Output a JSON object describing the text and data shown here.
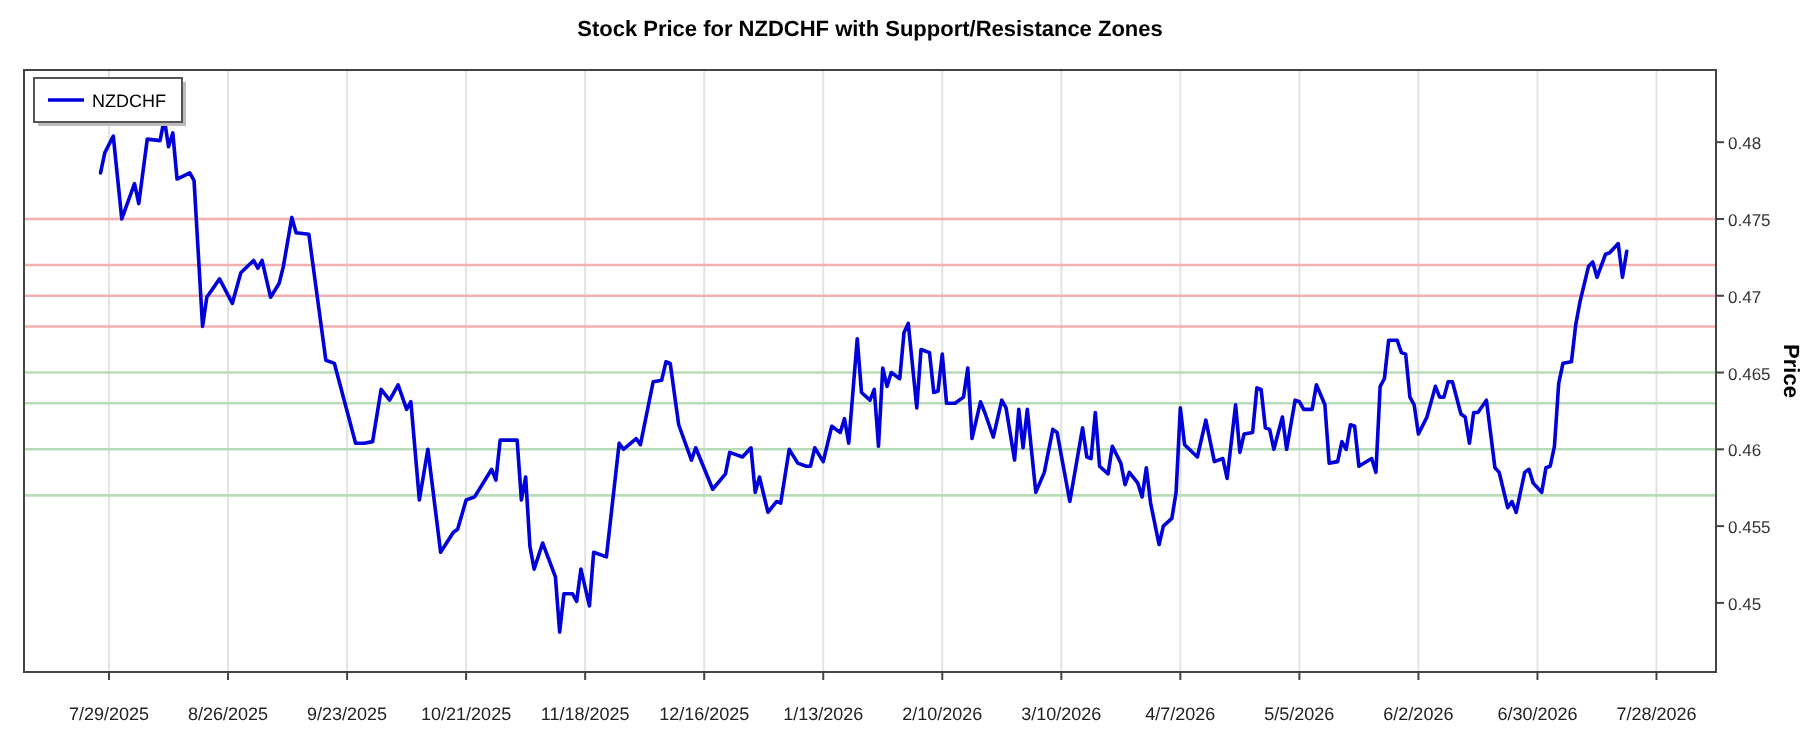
{
  "chart_data": {
    "type": "line",
    "title": "Stock Price for NZDCHF with Support/Resistance Zones",
    "ylabel": "Price",
    "x": [
      "2025-07-27",
      "2025-07-28",
      "2025-07-30",
      "2025-08-01",
      "2025-08-04",
      "2025-08-05",
      "2025-08-07",
      "2025-08-10",
      "2025-08-11",
      "2025-08-12",
      "2025-08-13",
      "2025-08-14",
      "2025-08-17",
      "2025-08-18",
      "2025-08-20",
      "2025-08-21",
      "2025-08-24",
      "2025-08-27",
      "2025-08-29",
      "2025-09-01",
      "2025-09-02",
      "2025-09-03",
      "2025-09-05",
      "2025-09-07",
      "2025-09-08",
      "2025-09-10",
      "2025-09-11",
      "2025-09-14",
      "2025-09-16",
      "2025-09-18",
      "2025-09-20",
      "2025-09-25",
      "2025-09-27",
      "2025-09-29",
      "2025-10-01",
      "2025-10-03",
      "2025-10-05",
      "2025-10-07",
      "2025-10-08",
      "2025-10-10",
      "2025-10-12",
      "2025-10-15",
      "2025-10-18",
      "2025-10-19",
      "2025-10-21",
      "2025-10-23",
      "2025-10-27",
      "2025-10-28",
      "2025-10-29",
      "2025-11-02",
      "2025-11-03",
      "2025-11-04",
      "2025-11-05",
      "2025-11-06",
      "2025-11-08",
      "2025-11-11",
      "2025-11-12",
      "2025-11-13",
      "2025-11-15",
      "2025-11-16",
      "2025-11-17",
      "2025-11-19",
      "2025-11-20",
      "2025-11-23",
      "2025-11-26",
      "2025-11-27",
      "2025-11-30",
      "2025-12-01",
      "2025-12-04",
      "2025-12-06",
      "2025-12-07",
      "2025-12-08",
      "2025-12-10",
      "2025-12-13",
      "2025-12-14",
      "2025-12-18",
      "2025-12-21",
      "2025-12-22",
      "2025-12-25",
      "2025-12-27",
      "2025-12-28",
      "2025-12-29",
      "2025-12-31",
      "2026-01-02",
      "2026-01-03",
      "2026-01-05",
      "2026-01-07",
      "2026-01-09",
      "2026-01-10",
      "2026-01-11",
      "2026-01-13",
      "2026-01-15",
      "2026-01-17",
      "2026-01-18",
      "2026-01-19",
      "2026-01-21",
      "2026-01-22",
      "2026-01-24",
      "2026-01-25",
      "2026-01-26",
      "2026-01-27",
      "2026-01-28",
      "2026-01-29",
      "2026-01-31",
      "2026-02-01",
      "2026-02-02",
      "2026-02-04",
      "2026-02-05",
      "2026-02-07",
      "2026-02-08",
      "2026-02-09",
      "2026-02-10",
      "2026-02-11",
      "2026-02-13",
      "2026-02-15",
      "2026-02-16",
      "2026-02-17",
      "2026-02-19",
      "2026-02-20",
      "2026-02-22",
      "2026-02-24",
      "2026-02-25",
      "2026-02-27",
      "2026-02-28",
      "2026-03-01",
      "2026-03-02",
      "2026-03-04",
      "2026-03-06",
      "2026-03-08",
      "2026-03-09",
      "2026-03-12",
      "2026-03-13",
      "2026-03-15",
      "2026-03-16",
      "2026-03-17",
      "2026-03-18",
      "2026-03-19",
      "2026-03-21",
      "2026-03-22",
      "2026-03-24",
      "2026-03-25",
      "2026-03-26",
      "2026-03-28",
      "2026-03-29",
      "2026-03-30",
      "2026-03-31",
      "2026-04-02",
      "2026-04-03",
      "2026-04-05",
      "2026-04-06",
      "2026-04-07",
      "2026-04-08",
      "2026-04-11",
      "2026-04-13",
      "2026-04-15",
      "2026-04-17",
      "2026-04-18",
      "2026-04-20",
      "2026-04-21",
      "2026-04-22",
      "2026-04-24",
      "2026-04-25",
      "2026-04-26",
      "2026-04-27",
      "2026-04-28",
      "2026-04-29",
      "2026-05-01",
      "2026-05-02",
      "2026-05-04",
      "2026-05-05",
      "2026-05-06",
      "2026-05-08",
      "2026-05-09",
      "2026-05-11",
      "2026-05-12",
      "2026-05-14",
      "2026-05-15",
      "2026-05-16",
      "2026-05-17",
      "2026-05-18",
      "2026-05-19",
      "2026-05-22",
      "2026-05-23",
      "2026-05-24",
      "2026-05-25",
      "2026-05-26",
      "2026-05-28",
      "2026-05-29",
      "2026-05-30",
      "2026-05-31",
      "2026-06-01",
      "2026-06-02",
      "2026-06-04",
      "2026-06-06",
      "2026-06-07",
      "2026-06-08",
      "2026-06-09",
      "2026-06-10",
      "2026-06-12",
      "2026-06-13",
      "2026-06-14",
      "2026-06-15",
      "2026-06-16",
      "2026-06-18",
      "2026-06-20",
      "2026-06-21",
      "2026-06-23",
      "2026-06-24",
      "2026-06-25",
      "2026-06-27",
      "2026-06-28",
      "2026-06-29",
      "2026-07-01",
      "2026-07-02",
      "2026-07-03",
      "2026-07-04",
      "2026-07-05",
      "2026-07-06",
      "2026-07-08",
      "2026-07-09",
      "2026-07-10",
      "2026-07-12",
      "2026-07-13",
      "2026-07-14",
      "2026-07-16",
      "2026-07-17",
      "2026-07-19",
      "2026-07-20",
      "2026-07-21"
    ],
    "series": [
      {
        "name": "NZDCHF",
        "color": "#0000dd",
        "values": [
          0.478,
          0.4793,
          0.4804,
          0.475,
          0.4773,
          0.476,
          0.4802,
          0.4801,
          0.4815,
          0.4797,
          0.4806,
          0.4776,
          0.478,
          0.4775,
          0.468,
          0.4699,
          0.4711,
          0.4695,
          0.4715,
          0.4723,
          0.4718,
          0.4723,
          0.4699,
          0.4708,
          0.4719,
          0.4751,
          0.4741,
          0.474,
          0.4699,
          0.4658,
          0.4656,
          0.4604,
          0.4604,
          0.4605,
          0.4639,
          0.4632,
          0.4642,
          0.4626,
          0.4631,
          0.4567,
          0.46,
          0.4533,
          0.4546,
          0.4548,
          0.4567,
          0.4569,
          0.4587,
          0.458,
          0.4606,
          0.4606,
          0.4567,
          0.4582,
          0.4537,
          0.4522,
          0.4539,
          0.4517,
          0.4481,
          0.4506,
          0.4506,
          0.4501,
          0.4522,
          0.4498,
          0.4533,
          0.453,
          0.4604,
          0.46,
          0.4607,
          0.4603,
          0.4644,
          0.4645,
          0.4657,
          0.4656,
          0.4616,
          0.4593,
          0.4601,
          0.4574,
          0.4584,
          0.4598,
          0.4595,
          0.4601,
          0.4572,
          0.4582,
          0.4559,
          0.4566,
          0.4565,
          0.46,
          0.4591,
          0.4589,
          0.4589,
          0.4601,
          0.4592,
          0.4615,
          0.4611,
          0.462,
          0.4604,
          0.4672,
          0.4637,
          0.4632,
          0.4639,
          0.4602,
          0.4653,
          0.4641,
          0.465,
          0.4646,
          0.4676,
          0.4682,
          0.4627,
          0.4665,
          0.4663,
          0.4637,
          0.4638,
          0.4662,
          0.463,
          0.463,
          0.4634,
          0.4653,
          0.4607,
          0.4631,
          0.4624,
          0.4608,
          0.4632,
          0.4627,
          0.4593,
          0.4626,
          0.4601,
          0.4626,
          0.4572,
          0.4585,
          0.4613,
          0.4611,
          0.4566,
          0.4582,
          0.4614,
          0.4595,
          0.4594,
          0.4624,
          0.4589,
          0.4584,
          0.4602,
          0.4591,
          0.4577,
          0.4585,
          0.4578,
          0.4569,
          0.4588,
          0.4565,
          0.4538,
          0.455,
          0.4555,
          0.4572,
          0.4627,
          0.4603,
          0.4595,
          0.4619,
          0.4592,
          0.4594,
          0.4581,
          0.4629,
          0.4598,
          0.461,
          0.4611,
          0.464,
          0.4639,
          0.4614,
          0.4613,
          0.46,
          0.4621,
          0.46,
          0.4632,
          0.4631,
          0.4626,
          0.4626,
          0.4642,
          0.4629,
          0.4591,
          0.4592,
          0.4605,
          0.46,
          0.4616,
          0.4615,
          0.4589,
          0.4594,
          0.4585,
          0.4641,
          0.4646,
          0.4671,
          0.4671,
          0.4663,
          0.4662,
          0.4634,
          0.4629,
          0.461,
          0.4621,
          0.4641,
          0.4634,
          0.4634,
          0.4644,
          0.4644,
          0.4623,
          0.4621,
          0.4604,
          0.4624,
          0.4624,
          0.4632,
          0.4588,
          0.4585,
          0.4562,
          0.4566,
          0.4559,
          0.4585,
          0.4587,
          0.4578,
          0.4572,
          0.4588,
          0.4589,
          0.4602,
          0.4643,
          0.4656,
          0.4657,
          0.4681,
          0.4696,
          0.4719,
          0.4722,
          0.4712,
          0.4727,
          0.4728,
          0.4734,
          0.4712,
          0.4729
        ]
      }
    ],
    "xlim": [
      "2025-07-09",
      "2026-08-11"
    ],
    "xticks": [
      {
        "value": "2025-07-29",
        "label": "7/29/2025"
      },
      {
        "value": "2025-08-26",
        "label": "8/26/2025"
      },
      {
        "value": "2025-09-23",
        "label": "9/23/2025"
      },
      {
        "value": "2025-10-21",
        "label": "10/21/2025"
      },
      {
        "value": "2025-11-18",
        "label": "11/18/2025"
      },
      {
        "value": "2025-12-16",
        "label": "12/16/2025"
      },
      {
        "value": "2026-01-13",
        "label": "1/13/2026"
      },
      {
        "value": "2026-02-10",
        "label": "2/10/2026"
      },
      {
        "value": "2026-03-10",
        "label": "3/10/2026"
      },
      {
        "value": "2026-04-07",
        "label": "4/7/2026"
      },
      {
        "value": "2026-05-05",
        "label": "5/5/2026"
      },
      {
        "value": "2026-06-02",
        "label": "6/2/2026"
      },
      {
        "value": "2026-06-30",
        "label": "6/30/2026"
      },
      {
        "value": "2026-07-28",
        "label": "7/28/2026"
      }
    ],
    "ylim": [
      0.4455,
      0.4847
    ],
    "yticks": [
      0.45,
      0.455,
      0.46,
      0.465,
      0.47,
      0.475,
      0.48
    ],
    "ref_lines": [
      {
        "axis": "y",
        "value": 0.475,
        "color": "#f4b0b0"
      },
      {
        "axis": "y",
        "value": 0.472,
        "color": "#f4b0b0"
      },
      {
        "axis": "y",
        "value": 0.47,
        "color": "#f4b0b0"
      },
      {
        "axis": "y",
        "value": 0.468,
        "color": "#f4b0b0"
      },
      {
        "axis": "y",
        "value": 0.465,
        "color": "#b8dcb8"
      },
      {
        "axis": "y",
        "value": 0.463,
        "color": "#b8dcb8"
      },
      {
        "axis": "y",
        "value": 0.46,
        "color": "#b8dcb8"
      },
      {
        "axis": "y",
        "value": 0.457,
        "color": "#b8dcb8"
      }
    ],
    "grid": "x",
    "legend": "top left",
    "line_style": "solid",
    "marker": "none"
  }
}
